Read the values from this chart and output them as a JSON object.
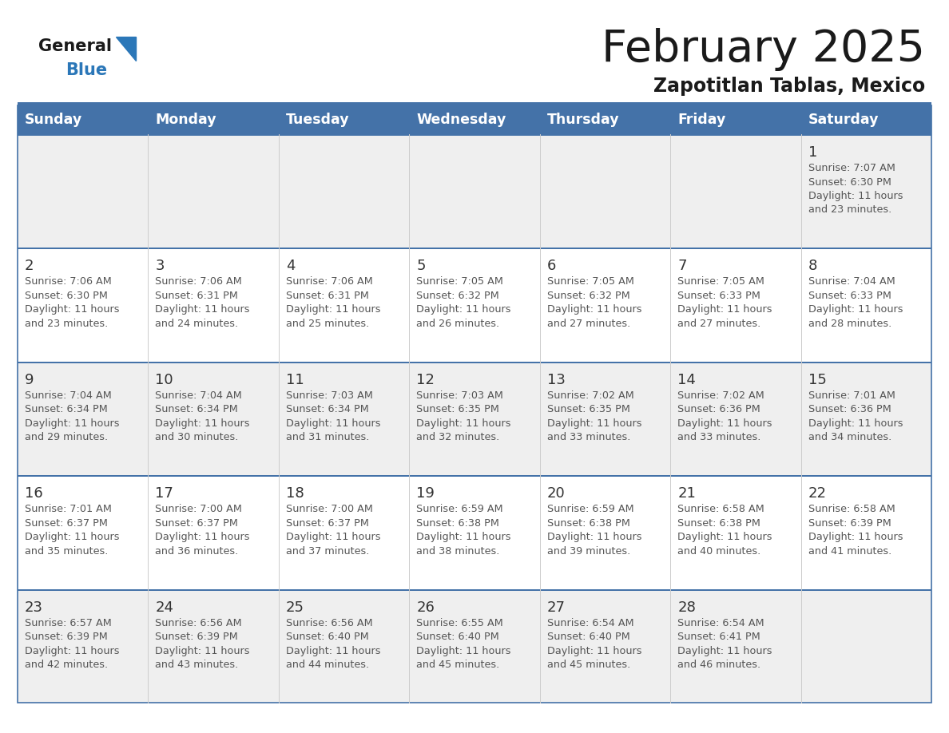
{
  "title": "February 2025",
  "subtitle": "Zapotitlan Tablas, Mexico",
  "days_of_week": [
    "Sunday",
    "Monday",
    "Tuesday",
    "Wednesday",
    "Thursday",
    "Friday",
    "Saturday"
  ],
  "header_bg": "#4472a8",
  "header_text": "#ffffff",
  "cell_bg_odd": "#efefef",
  "cell_bg_even": "#ffffff",
  "separator_color": "#4472a8",
  "day_num_color": "#333333",
  "text_color": "#555555",
  "logo_text_color": "#1a1a1a",
  "logo_blue_color": "#2b77b8",
  "title_color": "#1a1a1a",
  "subtitle_color": "#1a1a1a",
  "calendar_data": [
    [
      null,
      null,
      null,
      null,
      null,
      null,
      1
    ],
    [
      2,
      3,
      4,
      5,
      6,
      7,
      8
    ],
    [
      9,
      10,
      11,
      12,
      13,
      14,
      15
    ],
    [
      16,
      17,
      18,
      19,
      20,
      21,
      22
    ],
    [
      23,
      24,
      25,
      26,
      27,
      28,
      null
    ]
  ],
  "sun_set_data": {
    "1": [
      "7:07 AM",
      "6:30 PM",
      "11 hours",
      "23 minutes"
    ],
    "2": [
      "7:06 AM",
      "6:30 PM",
      "11 hours",
      "23 minutes"
    ],
    "3": [
      "7:06 AM",
      "6:31 PM",
      "11 hours",
      "24 minutes"
    ],
    "4": [
      "7:06 AM",
      "6:31 PM",
      "11 hours",
      "25 minutes"
    ],
    "5": [
      "7:05 AM",
      "6:32 PM",
      "11 hours",
      "26 minutes"
    ],
    "6": [
      "7:05 AM",
      "6:32 PM",
      "11 hours",
      "27 minutes"
    ],
    "7": [
      "7:05 AM",
      "6:33 PM",
      "11 hours",
      "27 minutes"
    ],
    "8": [
      "7:04 AM",
      "6:33 PM",
      "11 hours",
      "28 minutes"
    ],
    "9": [
      "7:04 AM",
      "6:34 PM",
      "11 hours",
      "29 minutes"
    ],
    "10": [
      "7:04 AM",
      "6:34 PM",
      "11 hours",
      "30 minutes"
    ],
    "11": [
      "7:03 AM",
      "6:34 PM",
      "11 hours",
      "31 minutes"
    ],
    "12": [
      "7:03 AM",
      "6:35 PM",
      "11 hours",
      "32 minutes"
    ],
    "13": [
      "7:02 AM",
      "6:35 PM",
      "11 hours",
      "33 minutes"
    ],
    "14": [
      "7:02 AM",
      "6:36 PM",
      "11 hours",
      "33 minutes"
    ],
    "15": [
      "7:01 AM",
      "6:36 PM",
      "11 hours",
      "34 minutes"
    ],
    "16": [
      "7:01 AM",
      "6:37 PM",
      "11 hours",
      "35 minutes"
    ],
    "17": [
      "7:00 AM",
      "6:37 PM",
      "11 hours",
      "36 minutes"
    ],
    "18": [
      "7:00 AM",
      "6:37 PM",
      "11 hours",
      "37 minutes"
    ],
    "19": [
      "6:59 AM",
      "6:38 PM",
      "11 hours",
      "38 minutes"
    ],
    "20": [
      "6:59 AM",
      "6:38 PM",
      "11 hours",
      "39 minutes"
    ],
    "21": [
      "6:58 AM",
      "6:38 PM",
      "11 hours",
      "40 minutes"
    ],
    "22": [
      "6:58 AM",
      "6:39 PM",
      "11 hours",
      "41 minutes"
    ],
    "23": [
      "6:57 AM",
      "6:39 PM",
      "11 hours",
      "42 minutes"
    ],
    "24": [
      "6:56 AM",
      "6:39 PM",
      "11 hours",
      "43 minutes"
    ],
    "25": [
      "6:56 AM",
      "6:40 PM",
      "11 hours",
      "44 minutes"
    ],
    "26": [
      "6:55 AM",
      "6:40 PM",
      "11 hours",
      "45 minutes"
    ],
    "27": [
      "6:54 AM",
      "6:40 PM",
      "11 hours",
      "45 minutes"
    ],
    "28": [
      "6:54 AM",
      "6:41 PM",
      "11 hours",
      "46 minutes"
    ]
  }
}
